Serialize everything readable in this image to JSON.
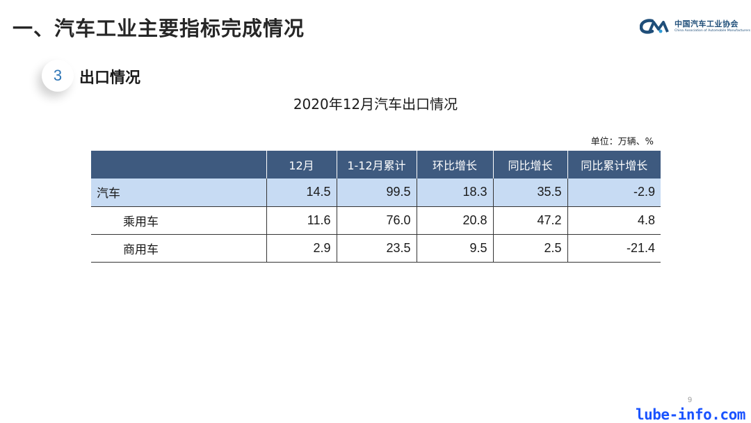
{
  "header": {
    "title": "一、汽车工业主要指标完成情况",
    "logo_cn": "中国汽车工业协会",
    "logo_en": "China Association of Automobile Manufacturers"
  },
  "section": {
    "number": "3",
    "title": "出口情况"
  },
  "table_title": "2020年12月汽车出口情况",
  "unit": "单位：万辆、%",
  "chart_data": {
    "type": "table",
    "columns": [
      "",
      "12月",
      "1-12月累计",
      "环比增长",
      "同比增长",
      "同比累计增长"
    ],
    "rows": [
      {
        "label": "汽车",
        "values": [
          "14.5",
          "99.5",
          "18.3",
          "35.5",
          "-2.9"
        ]
      },
      {
        "label": "乘用车",
        "values": [
          "11.6",
          "76.0",
          "20.8",
          "47.2",
          "4.8"
        ]
      },
      {
        "label": "商用车",
        "values": [
          "2.9",
          "23.5",
          "9.5",
          "2.5",
          "-21.4"
        ]
      }
    ]
  },
  "page_number": "9",
  "watermark": "lube-info.com",
  "colors": {
    "header_bg": "#3e5a7f",
    "highlight_row": "#c7dbf3",
    "logo_blue": "#1f4e79",
    "badge_text": "#2e75b6",
    "watermark": "#1a53ff"
  }
}
